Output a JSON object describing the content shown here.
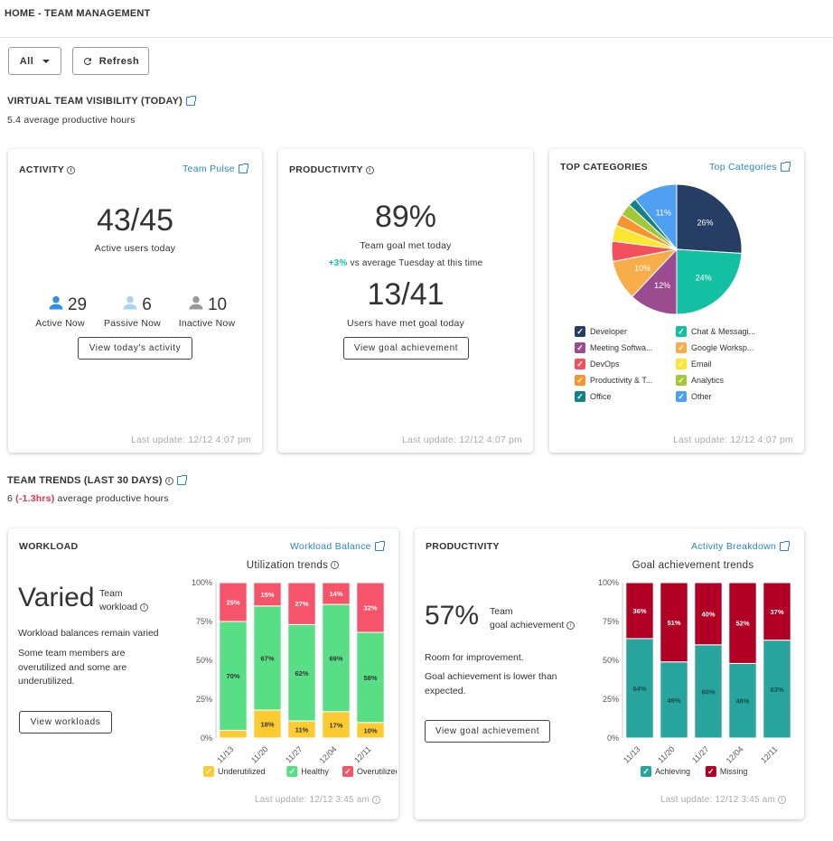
{
  "breadcrumb": "HOME - TEAM MANAGEMENT",
  "filter": {
    "selected": "All"
  },
  "refresh_label": "Refresh",
  "visibility": {
    "title": "VIRTUAL TEAM VISIBILITY (TODAY)",
    "subtitle": "5.4 average productive hours"
  },
  "activity": {
    "title": "ACTIVITY",
    "link": "Team Pulse",
    "big": "43/45",
    "big_label": "Active users today",
    "active_count": "29",
    "active_label": "Active Now",
    "passive_count": "6",
    "passive_label": "Passive Now",
    "inactive_count": "10",
    "inactive_label": "Inactive Now",
    "button": "View today's activity",
    "footer": "Last update: 12/12 4:07 pm"
  },
  "productivity_today": {
    "title": "PRODUCTIVITY",
    "big": "89%",
    "big_label": "Team goal met today",
    "delta": "+3%",
    "delta_text": " vs average Tuesday at this time",
    "big2": "13/41",
    "big2_label": "Users have met goal today",
    "button": "View goal achievement",
    "footer": "Last update: 12/12 4:07 pm"
  },
  "top_categories": {
    "title": "TOP CATEGORIES",
    "link": "Top Categories",
    "footer": "Last update: 12/12 4:07 pm",
    "legend": [
      "Developer",
      "Chat & Messagi...",
      "Meeting Softwa...",
      "Google Worksp...",
      "DevOps",
      "Email",
      "Productivity & T...",
      "Analytics",
      "Office",
      "Other"
    ]
  },
  "trends": {
    "title": "TEAM TRENDS (LAST 30 DAYS)",
    "value": "6",
    "delta": "(-1.3hrs)",
    "suffix": " average productive hours"
  },
  "workload": {
    "title": "WORKLOAD",
    "link": "Workload Balance",
    "big": "Varied",
    "big_sub1": "Team",
    "big_sub2": "workload",
    "text1": "Workload balances remain varied",
    "text2": "Some team members are overutilized and some are underutilized.",
    "button": "View workloads",
    "chart_title": "Utilization trends",
    "footer": "Last update: 12/12 3:45 am"
  },
  "productivity_trend": {
    "title": "PRODUCTIVITY",
    "link": "Activity Breakdown",
    "big": "57%",
    "big_sub1": "Team",
    "big_sub2": "goal achievement",
    "text1": "Room for improvement.",
    "text2": "Goal achievement is lower than expected.",
    "button": "View goal achievement",
    "chart_title": "Goal achievement trends",
    "footer": "Last update: 12/12 3:45 am"
  },
  "chart_data": [
    {
      "type": "pie",
      "title": "TOP CATEGORIES",
      "categories": [
        "Developer",
        "Chat & Messagi...",
        "Meeting Softwa...",
        "Google Worksp...",
        "DevOps",
        "Email",
        "Productivity & T...",
        "Analytics",
        "Office",
        "Other"
      ],
      "values": [
        26,
        24,
        12,
        10,
        5,
        4,
        3,
        3,
        2,
        11
      ],
      "labels": [
        "26%",
        "24%",
        "12%",
        "10%",
        "",
        "",
        "",
        "",
        "",
        "11%"
      ],
      "colors": [
        "#263e63",
        "#14c0a4",
        "#9b4b8f",
        "#f7ad4a",
        "#f2505d",
        "#fbe731",
        "#f7962f",
        "#a2c838",
        "#12818b",
        "#4f9ff2"
      ]
    },
    {
      "type": "bar",
      "stacked": true,
      "title": "Utilization trends",
      "categories": [
        "11/13",
        "11/20",
        "11/27",
        "12/04",
        "12/11"
      ],
      "series": [
        {
          "name": "Underutilized",
          "values": [
            5,
            18,
            11,
            17,
            10
          ],
          "labels": [
            "",
            "18%",
            "11%",
            "17%",
            "10%"
          ],
          "color": "#fccb31"
        },
        {
          "name": "Healthy",
          "values": [
            70,
            67,
            62,
            69,
            58
          ],
          "labels": [
            "70%",
            "67%",
            "62%",
            "69%",
            "58%"
          ],
          "color": "#58df85"
        },
        {
          "name": "Overutilized",
          "values": [
            25,
            15,
            27,
            14,
            32
          ],
          "labels": [
            "25%",
            "15%",
            "27%",
            "14%",
            "32%"
          ],
          "color": "#f6546a"
        }
      ],
      "ylim": [
        0,
        100
      ],
      "yticks": [
        "0%",
        "25%",
        "50%",
        "75%",
        "100%"
      ],
      "legend": "bottom"
    },
    {
      "type": "bar",
      "stacked": true,
      "title": "Goal achievement trends",
      "categories": [
        "11/13",
        "11/20",
        "11/27",
        "12/04",
        "12/11"
      ],
      "series": [
        {
          "name": "Achieving",
          "values": [
            64,
            49,
            60,
            48,
            63
          ],
          "labels": [
            "64%",
            "49%",
            "60%",
            "48%",
            "63%"
          ],
          "color": "#27a49e"
        },
        {
          "name": "Missing",
          "values": [
            36,
            51,
            40,
            52,
            37
          ],
          "labels": [
            "36%",
            "51%",
            "40%",
            "52%",
            "37%"
          ],
          "color": "#b10023"
        }
      ],
      "ylim": [
        0,
        100
      ],
      "yticks": [
        "0%",
        "25%",
        "50%",
        "75%",
        "100%"
      ],
      "legend": "bottom"
    }
  ]
}
